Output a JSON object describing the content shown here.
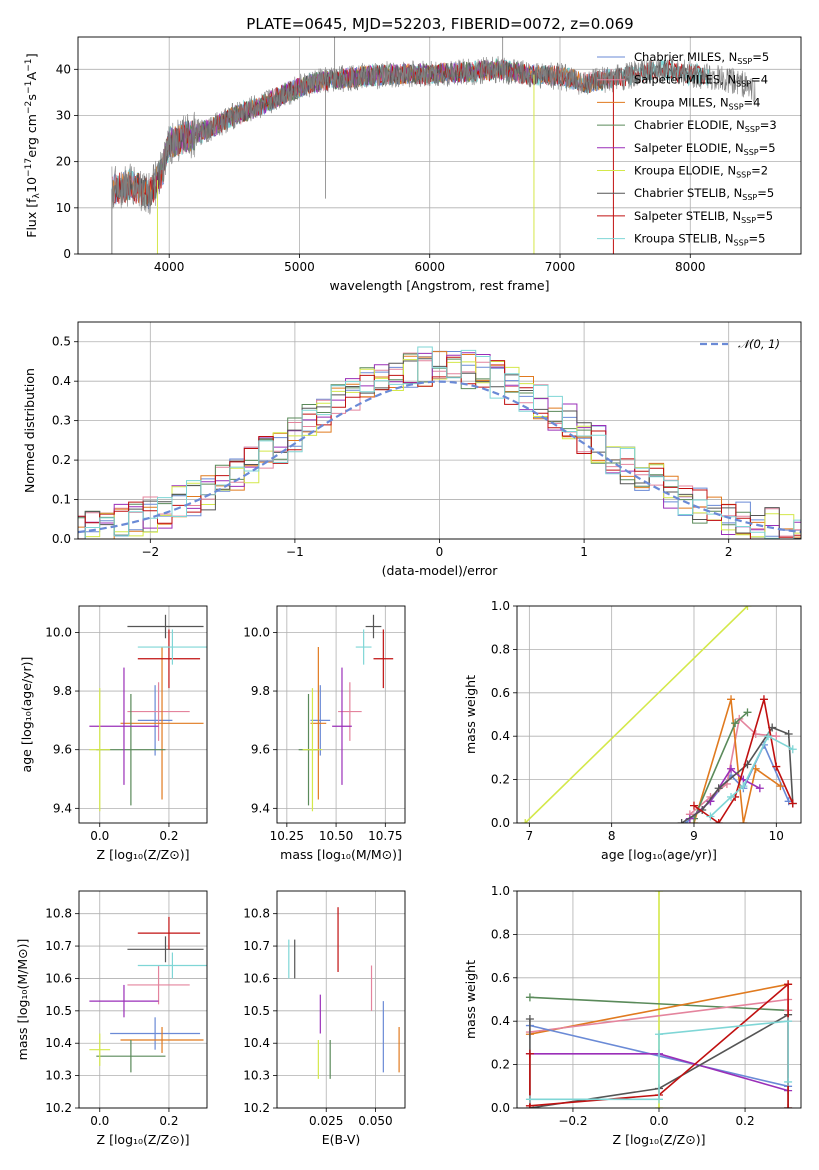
{
  "figure": {
    "title": "PLATE=0645, MJD=52203, FIBERID=0072, z=0.069"
  },
  "colors": {
    "Chabrier MILES": "#6a8ad6",
    "Salpeter MILES": "#e4849d",
    "Kroupa MILES": "#e07a1f",
    "Chabrier ELODIE": "#5a8a5a",
    "Salpeter ELODIE": "#9a2fb8",
    "Kroupa ELODIE": "#d4e84a",
    "Chabrier STELIB": "#555555",
    "Salpeter STELIB": "#c01010",
    "Kroupa STELIB": "#7fd6d6",
    "gauss": "#6a8ad6"
  },
  "chart_data": [
    {
      "id": "spectrum",
      "type": "line",
      "xlabel": "wavelength [Angstrom, rest frame]",
      "ylabel": "Flux [f_λ 10^-17 erg cm^-2 s^-1 A^-1]",
      "xlim": [
        3300,
        8850
      ],
      "ylim": [
        0,
        47
      ],
      "xticks": [
        4000,
        5000,
        6000,
        7000,
        8000
      ],
      "yticks": [
        0,
        10,
        20,
        30,
        40
      ],
      "legend_position": "top-right",
      "legend": [
        {
          "series": "Chabrier MILES",
          "label": "Chabrier MILES, N",
          "nssp": "5"
        },
        {
          "series": "Salpeter MILES",
          "label": "Salpeter MILES, N",
          "nssp": "4"
        },
        {
          "series": "Kroupa MILES",
          "label": "Kroupa MILES, N",
          "nssp": "4"
        },
        {
          "series": "Chabrier ELODIE",
          "label": "Chabrier ELODIE, N",
          "nssp": "3"
        },
        {
          "series": "Salpeter ELODIE",
          "label": "Salpeter ELODIE, N",
          "nssp": "5"
        },
        {
          "series": "Kroupa ELODIE",
          "label": "Kroupa ELODIE, N",
          "nssp": "2"
        },
        {
          "series": "Chabrier STELIB",
          "label": "Chabrier STELIB, N",
          "nssp": "5"
        },
        {
          "series": "Salpeter STELIB",
          "label": "Salpeter STELIB, N",
          "nssp": "5"
        },
        {
          "series": "Kroupa STELIB",
          "label": "Kroupa STELIB, N",
          "nssp": "5"
        }
      ],
      "continuum_knots": {
        "wavelength": [
          3560,
          3700,
          3850,
          3950,
          4000,
          4100,
          4300,
          4500,
          4700,
          4900,
          5100,
          5300,
          5500,
          5800,
          6000,
          6300,
          6560,
          6700,
          7000,
          7200,
          7400,
          7600,
          7800,
          8000,
          8200,
          8400,
          8500
        ],
        "flux": [
          14,
          15,
          13,
          18,
          24,
          25,
          27,
          30,
          32,
          35,
          37,
          38,
          38.5,
          39,
          39,
          39.5,
          40,
          39,
          38.5,
          37,
          38,
          39,
          40,
          39,
          38,
          37,
          35
        ]
      },
      "spikes": [
        {
          "wavelength": 5200,
          "flux": 12
        },
        {
          "wavelength": 5270,
          "flux": 47
        },
        {
          "wavelength": 6560,
          "flux": 47
        }
      ]
    },
    {
      "id": "residual-histogram",
      "type": "bar",
      "xlabel": "(data-model)/error",
      "ylabel": "Normed distribution",
      "xlim": [
        -2.5,
        2.5
      ],
      "ylim": [
        0,
        0.55
      ],
      "xticks": [
        -2,
        -1,
        0,
        1,
        2
      ],
      "yticks": [
        0.0,
        0.1,
        0.2,
        0.3,
        0.4,
        0.5
      ],
      "bin_width": 0.1,
      "gauss_label": "N(0, 1)",
      "gauss_label_math": "𝒩(0, 1)",
      "legend_position": "top-right"
    },
    {
      "id": "z-age",
      "type": "scatter",
      "xlabel": "Z [log10(Z/Z☉)]",
      "ylabel": "age [log10(age/yr)]",
      "xlim": [
        -0.06,
        0.31
      ],
      "ylim": [
        9.35,
        10.09
      ],
      "xticks": [
        0.0,
        0.2
      ],
      "yticks": [
        9.4,
        9.6,
        9.8,
        10.0
      ],
      "points": [
        {
          "series": "Chabrier MILES",
          "x": 0.16,
          "xerr": 0.05,
          "y": 9.7,
          "yerr": 0.12
        },
        {
          "series": "Salpeter MILES",
          "x": 0.17,
          "xerr": 0.09,
          "y": 9.73,
          "yerr": 0.1
        },
        {
          "series": "Kroupa MILES",
          "x": 0.18,
          "xerr": 0.12,
          "y": 9.69,
          "yerr": 0.26
        },
        {
          "series": "Chabrier ELODIE",
          "x": 0.09,
          "xerr": 0.1,
          "y": 9.6,
          "yerr": 0.19
        },
        {
          "series": "Salpeter ELODIE",
          "x": 0.07,
          "xerr": 0.1,
          "y": 9.68,
          "yerr": 0.2
        },
        {
          "series": "Kroupa ELODIE",
          "x": 0.0,
          "xerr": 0.03,
          "y": 9.6,
          "yerr": 0.21
        },
        {
          "series": "Chabrier STELIB",
          "x": 0.19,
          "xerr": 0.11,
          "y": 10.02,
          "yerr": 0.04
        },
        {
          "series": "Salpeter STELIB",
          "x": 0.2,
          "xerr": 0.09,
          "y": 9.91,
          "yerr": 0.1
        },
        {
          "series": "Kroupa STELIB",
          "x": 0.21,
          "xerr": 0.1,
          "y": 9.95,
          "yerr": 0.06
        }
      ]
    },
    {
      "id": "mass-age",
      "type": "scatter",
      "xlabel": "mass [log10(M/M☉)]",
      "ylabel": "",
      "xlim": [
        10.2,
        10.85
      ],
      "ylim": [
        9.35,
        10.09
      ],
      "xticks": [
        10.25,
        10.5,
        10.75
      ],
      "yticks": [
        9.4,
        9.6,
        9.8,
        10.0
      ],
      "points": [
        {
          "series": "Chabrier MILES",
          "x": 10.42,
          "xerr": 0.05,
          "y": 9.7,
          "yerr": 0.12
        },
        {
          "series": "Salpeter MILES",
          "x": 10.57,
          "xerr": 0.06,
          "y": 9.73,
          "yerr": 0.1
        },
        {
          "series": "Kroupa MILES",
          "x": 10.41,
          "xerr": 0.04,
          "y": 9.69,
          "yerr": 0.26
        },
        {
          "series": "Chabrier ELODIE",
          "x": 10.36,
          "xerr": 0.05,
          "y": 9.6,
          "yerr": 0.19
        },
        {
          "series": "Salpeter ELODIE",
          "x": 10.53,
          "xerr": 0.05,
          "y": 9.68,
          "yerr": 0.2
        },
        {
          "series": "Kroupa ELODIE",
          "x": 10.38,
          "xerr": 0.05,
          "y": 9.6,
          "yerr": 0.21
        },
        {
          "series": "Chabrier STELIB",
          "x": 10.69,
          "xerr": 0.04,
          "y": 10.02,
          "yerr": 0.04
        },
        {
          "series": "Salpeter STELIB",
          "x": 10.74,
          "xerr": 0.05,
          "y": 9.91,
          "yerr": 0.1
        },
        {
          "series": "Kroupa STELIB",
          "x": 10.64,
          "xerr": 0.04,
          "y": 9.95,
          "yerr": 0.06
        }
      ]
    },
    {
      "id": "age-weight",
      "type": "line",
      "xlabel": "age [log10(age/yr)]",
      "ylabel": "mass weight",
      "xlim": [
        6.85,
        10.3
      ],
      "ylim": [
        0,
        1
      ],
      "xticks": [
        7,
        8,
        9,
        10
      ],
      "yticks": [
        0.0,
        0.2,
        0.4,
        0.6,
        0.8,
        1.0
      ],
      "series": [
        {
          "name": "Kroupa ELODIE",
          "x": [
            6.95,
            9.65
          ],
          "y": [
            0.0,
            1.0
          ]
        },
        {
          "name": "Chabrier MILES",
          "x": [
            8.9,
            9.2,
            9.45,
            9.6,
            9.85,
            10.15
          ],
          "y": [
            0.0,
            0.1,
            0.22,
            0.16,
            0.36,
            0.1
          ]
        },
        {
          "name": "Salpeter MILES",
          "x": [
            8.95,
            9.2,
            9.4,
            9.55,
            9.75,
            10.0
          ],
          "y": [
            0.04,
            0.12,
            0.18,
            0.48,
            0.41,
            0.4
          ]
        },
        {
          "name": "Kroupa MILES",
          "x": [
            9.0,
            9.45,
            9.6,
            9.75,
            10.05
          ],
          "y": [
            0.0,
            0.57,
            0.0,
            0.25,
            0.17
          ]
        },
        {
          "name": "Chabrier ELODIE",
          "x": [
            9.0,
            9.5,
            9.65
          ],
          "y": [
            0.02,
            0.46,
            0.51
          ]
        },
        {
          "name": "Salpeter ELODIE",
          "x": [
            8.95,
            9.2,
            9.45,
            9.6,
            9.8
          ],
          "y": [
            0.02,
            0.1,
            0.25,
            0.2,
            0.16
          ]
        },
        {
          "name": "Chabrier STELIB",
          "x": [
            8.85,
            9.1,
            9.3,
            9.65,
            9.95,
            10.15,
            10.2
          ],
          "y": [
            0.0,
            0.06,
            0.16,
            0.27,
            0.44,
            0.41,
            0.09
          ]
        },
        {
          "name": "Salpeter STELIB",
          "x": [
            9.0,
            9.3,
            9.5,
            9.85,
            10.0,
            10.2
          ],
          "y": [
            0.08,
            0.0,
            0.12,
            0.57,
            0.26,
            0.09
          ]
        },
        {
          "name": "Kroupa STELIB",
          "x": [
            9.2,
            9.45,
            9.6,
            9.9,
            10.2
          ],
          "y": [
            0.03,
            0.12,
            0.17,
            0.4,
            0.34
          ]
        }
      ]
    },
    {
      "id": "z-mass",
      "type": "scatter",
      "xlabel": "Z [log10(Z/Z☉)]",
      "ylabel": "mass [log10(M/M☉)]",
      "xlim": [
        -0.06,
        0.31
      ],
      "ylim": [
        10.2,
        10.87
      ],
      "xticks": [
        0.0,
        0.2
      ],
      "yticks": [
        10.2,
        10.3,
        10.4,
        10.5,
        10.6,
        10.7,
        10.8
      ],
      "points": [
        {
          "series": "Chabrier MILES",
          "x": 0.16,
          "xerr": 0.13,
          "y": 10.43,
          "yerr": 0.05
        },
        {
          "series": "Salpeter MILES",
          "x": 0.17,
          "xerr": 0.09,
          "y": 10.58,
          "yerr": 0.06
        },
        {
          "series": "Kroupa MILES",
          "x": 0.18,
          "xerr": 0.12,
          "y": 10.41,
          "yerr": 0.04
        },
        {
          "series": "Chabrier ELODIE",
          "x": 0.09,
          "xerr": 0.1,
          "y": 10.36,
          "yerr": 0.05
        },
        {
          "series": "Salpeter ELODIE",
          "x": 0.07,
          "xerr": 0.1,
          "y": 10.53,
          "yerr": 0.05
        },
        {
          "series": "Kroupa ELODIE",
          "x": 0.0,
          "xerr": 0.03,
          "y": 10.38,
          "yerr": 0.05
        },
        {
          "series": "Chabrier STELIB",
          "x": 0.19,
          "xerr": 0.11,
          "y": 10.69,
          "yerr": 0.04
        },
        {
          "series": "Salpeter STELIB",
          "x": 0.2,
          "xerr": 0.09,
          "y": 10.74,
          "yerr": 0.05
        },
        {
          "series": "Kroupa STELIB",
          "x": 0.21,
          "xerr": 0.1,
          "y": 10.64,
          "yerr": 0.04
        }
      ]
    },
    {
      "id": "ebv-mass",
      "type": "scatter",
      "xlabel": "E(B-V)",
      "ylabel": "",
      "xlim": [
        0.0,
        0.065
      ],
      "ylim": [
        10.2,
        10.87
      ],
      "xticks": [
        0.025,
        0.05
      ],
      "yticks": [
        10.2,
        10.3,
        10.4,
        10.5,
        10.6,
        10.7,
        10.8
      ],
      "points": [
        {
          "series": "Chabrier MILES",
          "x": 0.054,
          "xerr": 0.0,
          "y": 10.42,
          "yerr": 0.11
        },
        {
          "series": "Salpeter MILES",
          "x": 0.048,
          "xerr": 0.0,
          "y": 10.57,
          "yerr": 0.07
        },
        {
          "series": "Kroupa MILES",
          "x": 0.062,
          "xerr": 0.0,
          "y": 10.38,
          "yerr": 0.07
        },
        {
          "series": "Chabrier ELODIE",
          "x": 0.027,
          "xerr": 0.0,
          "y": 10.35,
          "yerr": 0.06
        },
        {
          "series": "Salpeter ELODIE",
          "x": 0.022,
          "xerr": 0.0,
          "y": 10.49,
          "yerr": 0.06
        },
        {
          "series": "Kroupa ELODIE",
          "x": 0.021,
          "xerr": 0.0,
          "y": 10.35,
          "yerr": 0.06
        },
        {
          "series": "Chabrier STELIB",
          "x": 0.009,
          "xerr": 0.0,
          "y": 10.66,
          "yerr": 0.06
        },
        {
          "series": "Salpeter STELIB",
          "x": 0.031,
          "xerr": 0.0,
          "y": 10.72,
          "yerr": 0.1
        },
        {
          "series": "Kroupa STELIB",
          "x": 0.006,
          "xerr": 0.0,
          "y": 10.66,
          "yerr": 0.06
        }
      ]
    },
    {
      "id": "z-weight",
      "type": "line",
      "xlabel": "Z [log10(Z/Z☉)]",
      "ylabel": "mass weight",
      "xlim": [
        -0.33,
        0.33
      ],
      "ylim": [
        0,
        1
      ],
      "xticks": [
        -0.2,
        0.0,
        0.2
      ],
      "yticks": [
        0.0,
        0.2,
        0.4,
        0.6,
        0.8,
        1.0
      ],
      "series": [
        {
          "name": "Kroupa ELODIE",
          "x": [
            0.0,
            0.0
          ],
          "y": [
            0.0,
            1.0
          ]
        },
        {
          "name": "Chabrier ELODIE",
          "x": [
            -0.3,
            0.3
          ],
          "y": [
            0.51,
            0.45
          ]
        },
        {
          "name": "Kroupa MILES",
          "x": [
            -0.3,
            0.3
          ],
          "y": [
            0.34,
            0.57
          ]
        },
        {
          "name": "Salpeter MILES",
          "x": [
            -0.3,
            0.3,
            0.3
          ],
          "y": [
            0.35,
            0.5,
            0.45
          ]
        },
        {
          "name": "Chabrier MILES",
          "x": [
            -0.3,
            0.3
          ],
          "y": [
            0.38,
            0.1
          ]
        },
        {
          "name": "Salpeter ELODIE",
          "x": [
            -0.3,
            0.0,
            0.3
          ],
          "y": [
            0.25,
            0.25,
            0.08
          ]
        },
        {
          "name": "Chabrier STELIB",
          "x": [
            -0.3,
            -0.3,
            0.0,
            0.3,
            0.3
          ],
          "y": [
            0.41,
            0.0,
            0.09,
            0.43,
            0.0
          ]
        },
        {
          "name": "Salpeter STELIB",
          "x": [
            -0.3,
            -0.3,
            0.0,
            0.3,
            0.3
          ],
          "y": [
            0.25,
            0.01,
            0.06,
            0.57,
            0.0
          ]
        },
        {
          "name": "Kroupa STELIB",
          "x": [
            -0.3,
            0.0,
            0.0,
            0.3,
            0.3
          ],
          "y": [
            0.04,
            0.04,
            0.34,
            0.4,
            0.12
          ]
        }
      ]
    }
  ]
}
